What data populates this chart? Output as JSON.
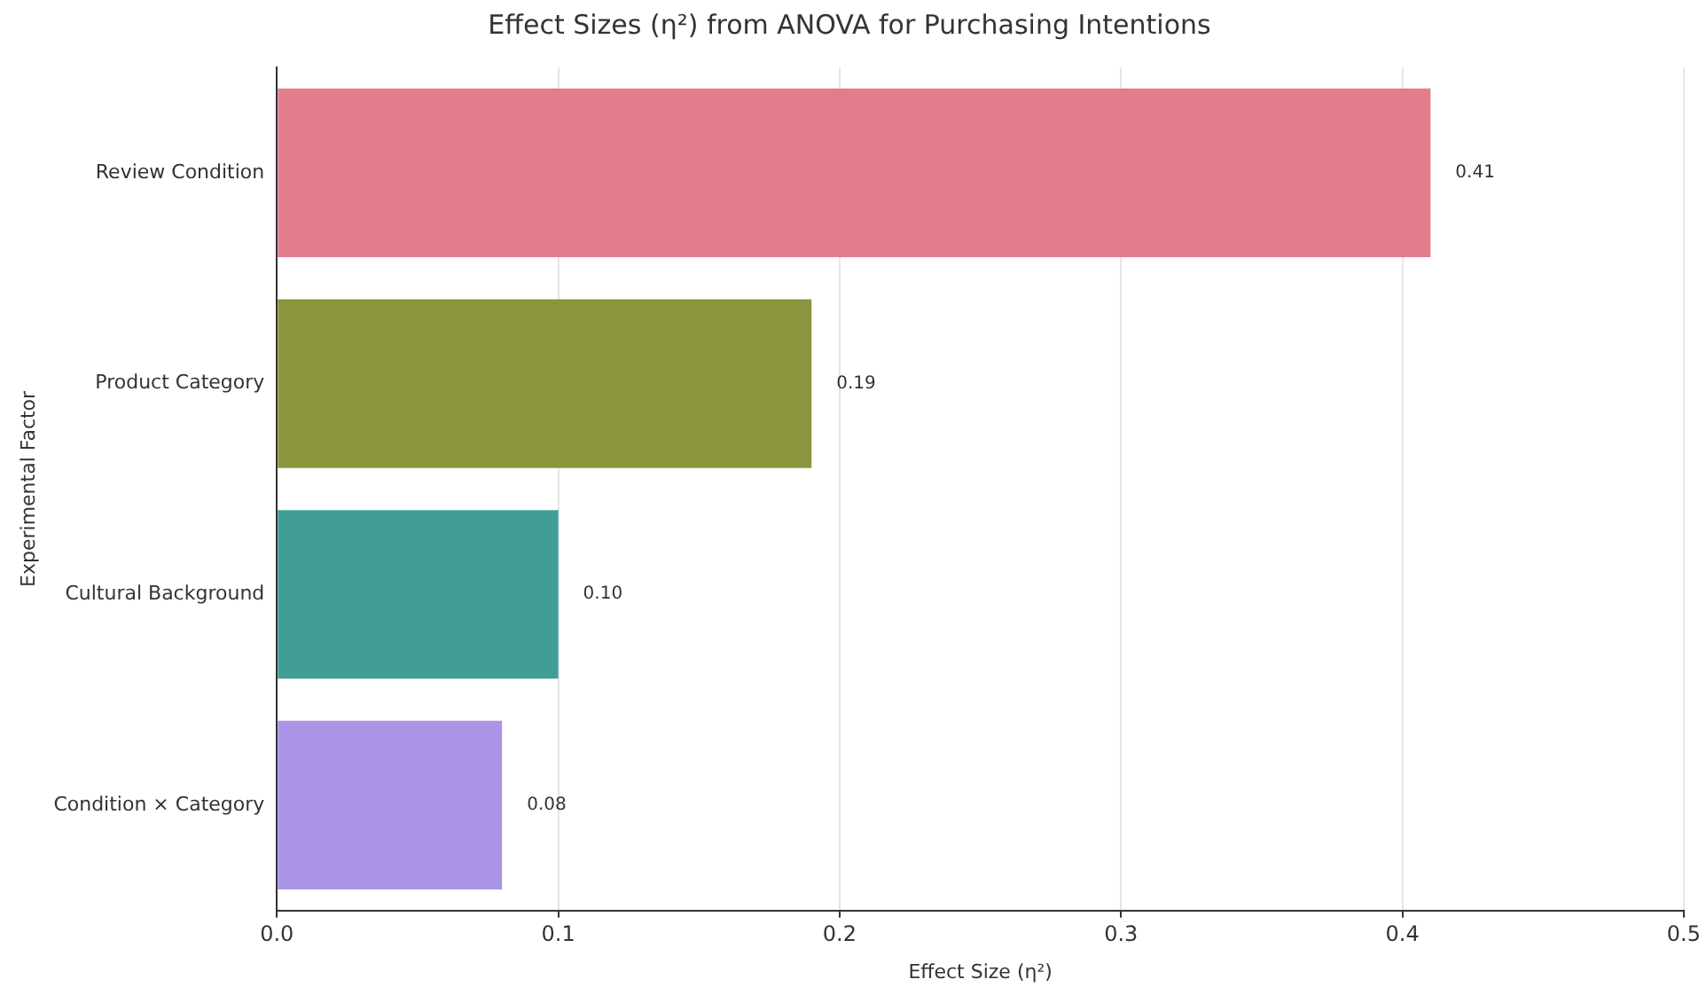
{
  "chart_data": {
    "type": "bar",
    "orientation": "horizontal",
    "title": "Effect Sizes (η²) from ANOVA for Purchasing Intentions",
    "xlabel": "Effect Size (η²)",
    "ylabel": "Experimental Factor",
    "categories": [
      "Review Condition",
      "Product Category",
      "Cultural Background",
      "Condition × Category"
    ],
    "values": [
      0.41,
      0.19,
      0.1,
      0.08
    ],
    "value_labels": [
      "0.41",
      "0.19",
      "0.10",
      "0.08"
    ],
    "colors": [
      "#e27d8e",
      "#8a953d",
      "#409e97",
      "#a994e6"
    ],
    "xlim": [
      0,
      0.5
    ],
    "xticks": [
      {
        "value": 0,
        "label": "0.0"
      },
      0.1,
      0.2,
      0.3,
      0.4,
      0.5
    ],
    "grid": "x",
    "legend": false
  }
}
